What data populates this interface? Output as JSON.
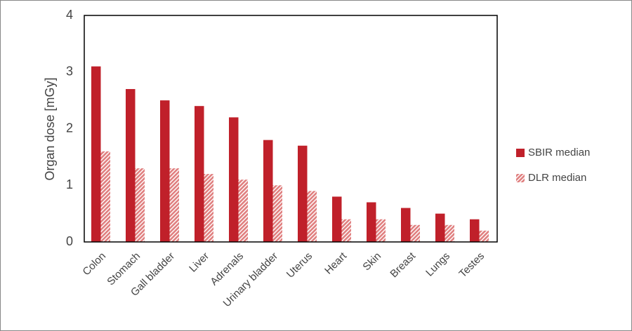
{
  "chart_data": {
    "type": "bar",
    "y_label": "Organ dose [mGy]",
    "categories": [
      "Colon",
      "Stomach",
      "Gall bladder",
      "Liver",
      "Adrenals",
      "Urinary bladder",
      "Uterus",
      "Heart",
      "Skin",
      "Breast",
      "Lungs",
      "Testes"
    ],
    "series": [
      {
        "name": "SBIR median",
        "color": "#c0202a",
        "values": [
          3.1,
          2.7,
          2.5,
          2.4,
          2.2,
          1.8,
          1.7,
          0.8,
          0.7,
          0.6,
          0.5,
          0.4
        ]
      },
      {
        "name": "DLR median",
        "color": "#e07f7f",
        "hatched": true,
        "values": [
          1.6,
          1.3,
          1.3,
          1.2,
          1.1,
          1.0,
          0.9,
          0.4,
          0.4,
          0.3,
          0.3,
          0.2
        ]
      }
    ],
    "ylim": [
      0,
      4
    ],
    "yticks": [
      0,
      1,
      2,
      3,
      4
    ],
    "grid": false,
    "legend": "right"
  }
}
